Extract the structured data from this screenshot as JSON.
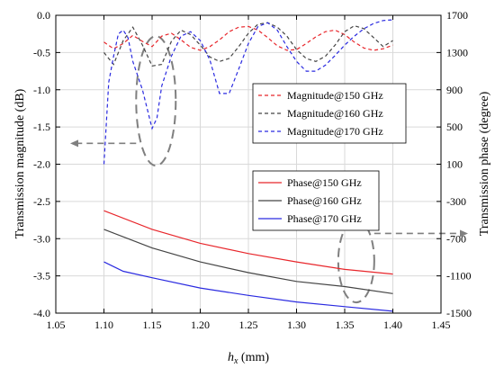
{
  "chart_data": {
    "type": "line",
    "xlabel_var": "h",
    "xlabel_sub": "x",
    "xlabel_unit": " (mm)",
    "ylabel_left": "Transmission magnitude (dB)",
    "ylabel_right": "Transmission phase (degree)",
    "xlim": [
      1.05,
      1.45
    ],
    "ylim_left": [
      -4.0,
      0.0
    ],
    "ylim_right": [
      -1500,
      1700
    ],
    "x_ticks": [
      "1.05",
      "1.10",
      "1.15",
      "1.20",
      "1.25",
      "1.30",
      "1.35",
      "1.40",
      "1.45"
    ],
    "y_left_ticks": [
      "0.0",
      "-0.5",
      "-1.0",
      "-1.5",
      "-2.0",
      "-2.5",
      "-3.0",
      "-3.5",
      "-4.0"
    ],
    "y_right_ticks": [
      "1700",
      "1300",
      "900",
      "500",
      "100",
      "-300",
      "-700",
      "-1100",
      "-1500"
    ],
    "grid": true,
    "colors": {
      "red": "#e8262b",
      "gray": "#444444",
      "blue": "#2a2ae0",
      "annotation": "#7f7f7f"
    },
    "magnitude_series": [
      {
        "name": "Magnitude@150 GHz",
        "axis": "left",
        "style": "dashed",
        "color": "#e8262b",
        "x": [
          1.1,
          1.11,
          1.12,
          1.13,
          1.14,
          1.15,
          1.16,
          1.17,
          1.18,
          1.19,
          1.2,
          1.21,
          1.22,
          1.23,
          1.24,
          1.25,
          1.26,
          1.27,
          1.28,
          1.29,
          1.3,
          1.31,
          1.32,
          1.33,
          1.34,
          1.35,
          1.36,
          1.37,
          1.38,
          1.39,
          1.4
        ],
        "y": [
          -0.36,
          -0.45,
          -0.38,
          -0.27,
          -0.35,
          -0.42,
          -0.28,
          -0.24,
          -0.33,
          -0.43,
          -0.47,
          -0.42,
          -0.33,
          -0.22,
          -0.16,
          -0.15,
          -0.2,
          -0.3,
          -0.41,
          -0.47,
          -0.46,
          -0.38,
          -0.29,
          -0.22,
          -0.2,
          -0.26,
          -0.36,
          -0.44,
          -0.47,
          -0.45,
          -0.4
        ]
      },
      {
        "name": "Magnitude@160 GHz",
        "axis": "left",
        "style": "dashed",
        "color": "#444444",
        "x": [
          1.1,
          1.11,
          1.12,
          1.13,
          1.14,
          1.15,
          1.16,
          1.17,
          1.18,
          1.19,
          1.2,
          1.21,
          1.22,
          1.23,
          1.24,
          1.25,
          1.26,
          1.27,
          1.28,
          1.29,
          1.3,
          1.31,
          1.32,
          1.33,
          1.34,
          1.35,
          1.36,
          1.37,
          1.38,
          1.39,
          1.4
        ],
        "y": [
          -0.5,
          -0.66,
          -0.34,
          -0.16,
          -0.4,
          -0.68,
          -0.66,
          -0.35,
          -0.2,
          -0.26,
          -0.4,
          -0.56,
          -0.62,
          -0.58,
          -0.42,
          -0.24,
          -0.12,
          -0.1,
          -0.16,
          -0.28,
          -0.46,
          -0.58,
          -0.62,
          -0.55,
          -0.4,
          -0.22,
          -0.14,
          -0.18,
          -0.3,
          -0.42,
          -0.34
        ]
      },
      {
        "name": "Magnitude@170 GHz",
        "axis": "left",
        "style": "dashed",
        "color": "#2a2ae0",
        "x": [
          1.1,
          1.105,
          1.11,
          1.115,
          1.12,
          1.125,
          1.13,
          1.14,
          1.15,
          1.155,
          1.16,
          1.17,
          1.18,
          1.19,
          1.2,
          1.21,
          1.22,
          1.23,
          1.24,
          1.25,
          1.26,
          1.27,
          1.28,
          1.29,
          1.3,
          1.31,
          1.32,
          1.33,
          1.34,
          1.35,
          1.36,
          1.37,
          1.38,
          1.39,
          1.4
        ],
        "y": [
          -2.0,
          -0.9,
          -0.55,
          -0.25,
          -0.2,
          -0.3,
          -0.62,
          -1.0,
          -1.52,
          -1.38,
          -0.95,
          -0.55,
          -0.28,
          -0.22,
          -0.34,
          -0.6,
          -1.05,
          -1.05,
          -0.72,
          -0.38,
          -0.15,
          -0.1,
          -0.2,
          -0.42,
          -0.62,
          -0.75,
          -0.75,
          -0.67,
          -0.54,
          -0.4,
          -0.28,
          -0.18,
          -0.11,
          -0.07,
          -0.06
        ]
      }
    ],
    "phase_series": [
      {
        "name": "Phase@150 GHz",
        "axis": "right",
        "style": "solid",
        "color": "#e8262b",
        "x": [
          1.1,
          1.15,
          1.2,
          1.25,
          1.3,
          1.35,
          1.4
        ],
        "y": [
          -400,
          -600,
          -750,
          -860,
          -950,
          -1030,
          -1080
        ]
      },
      {
        "name": "Phase@160 GHz",
        "axis": "right",
        "style": "solid",
        "color": "#444444",
        "x": [
          1.1,
          1.15,
          1.2,
          1.25,
          1.3,
          1.35,
          1.4
        ],
        "y": [
          -600,
          -800,
          -950,
          -1065,
          -1160,
          -1215,
          -1290
        ]
      },
      {
        "name": "Phase@170 GHz",
        "axis": "right",
        "style": "solid",
        "color": "#2a2ae0",
        "x": [
          1.1,
          1.12,
          1.15,
          1.2,
          1.25,
          1.3,
          1.35,
          1.4
        ],
        "y": [
          -950,
          -1050,
          -1120,
          -1230,
          -1310,
          -1380,
          -1430,
          -1480
        ]
      }
    ]
  }
}
